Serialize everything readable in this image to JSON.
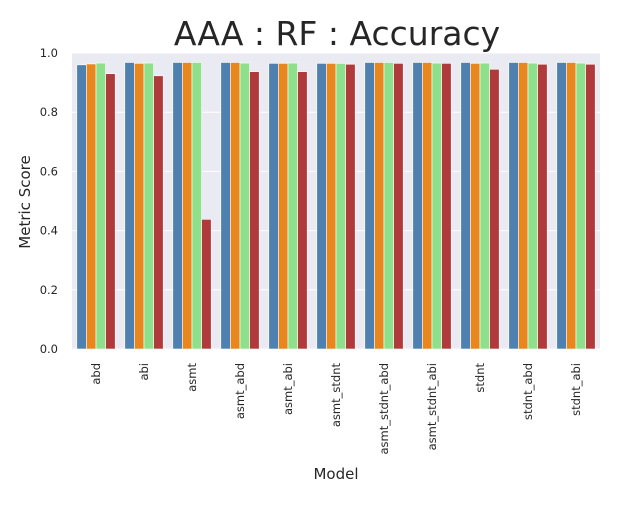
{
  "chart_data": {
    "type": "bar",
    "title": "AAA : RF : Accuracy",
    "xlabel": "Model",
    "ylabel": "Metric Score",
    "ylim": [
      0,
      1.0
    ],
    "yticks": [
      "0.0",
      "0.2",
      "0.4",
      "0.6",
      "0.8",
      "1.0"
    ],
    "grid": true,
    "legend": "none",
    "categories": [
      "abd",
      "abi",
      "asmt",
      "asmt_abd",
      "asmt_abi",
      "asmt_stdnt",
      "asmt_stdnt_abd",
      "asmt_stdnt_abi",
      "stdnt",
      "stdnt_abd",
      "stdnt_abi"
    ],
    "series": [
      {
        "color": "#4e81b0",
        "values": [
          0.96,
          0.968,
          0.968,
          0.968,
          0.965,
          0.965,
          0.968,
          0.968,
          0.968,
          0.968,
          0.968
        ]
      },
      {
        "color": "#e8861f",
        "values": [
          0.963,
          0.965,
          0.968,
          0.968,
          0.965,
          0.965,
          0.968,
          0.968,
          0.965,
          0.968,
          0.968
        ]
      },
      {
        "color": "#8ee08a",
        "values": [
          0.966,
          0.966,
          0.968,
          0.966,
          0.966,
          0.965,
          0.968,
          0.966,
          0.966,
          0.966,
          0.966
        ]
      },
      {
        "color": "#b03a3b",
        "values": [
          0.93,
          0.923,
          0.438,
          0.937,
          0.937,
          0.962,
          0.965,
          0.965,
          0.945,
          0.962,
          0.962
        ]
      }
    ],
    "background": "#eaeaf2",
    "gridColor": "#ffffff"
  }
}
